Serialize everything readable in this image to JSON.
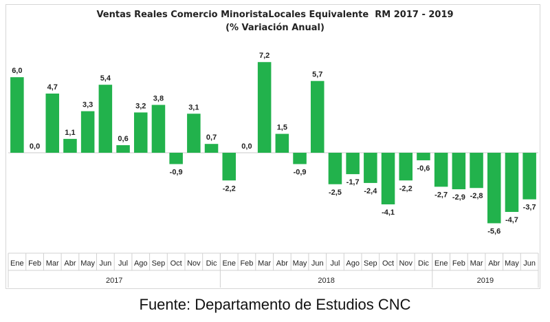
{
  "chart_data": {
    "type": "bar",
    "title": "Ventas Reales Comercio MinoristaLocales Equivalente  RM 2017 - 2019",
    "subtitle": "(% Variación Anual)",
    "xlabel": "",
    "ylabel": "",
    "ylim": [
      -7,
      8
    ],
    "grid": false,
    "legend": "none",
    "bar_color": "#22b24c",
    "categories": [
      "Ene",
      "Feb",
      "Mar",
      "Abr",
      "May",
      "Jun",
      "Jul",
      "Ago",
      "Sep",
      "Oct",
      "Nov",
      "Dic",
      "Ene",
      "Feb",
      "Mar",
      "Abr",
      "May",
      "Jun",
      "Jul",
      "Ago",
      "Sep",
      "Oct",
      "Nov",
      "Dic",
      "Ene",
      "Feb",
      "Mar",
      "Abr",
      "May",
      "Jun"
    ],
    "values": [
      6.0,
      0.0,
      4.7,
      1.1,
      3.3,
      5.4,
      0.6,
      3.2,
      3.8,
      -0.9,
      3.1,
      0.7,
      -2.2,
      0.0,
      7.2,
      1.5,
      -0.9,
      5.7,
      -2.5,
      -1.7,
      -2.4,
      -4.1,
      -2.2,
      -0.6,
      -2.7,
      -2.9,
      -2.8,
      -5.6,
      -4.7,
      -3.7
    ],
    "value_labels": [
      "6,0",
      "0,0",
      "4,7",
      "1,1",
      "3,3",
      "5,4",
      "0,6",
      "3,2",
      "3,8",
      "-0,9",
      "3,1",
      "0,7",
      "-2,2",
      "0,0",
      "7,2",
      "1,5",
      "-0,9",
      "5,7",
      "-2,5",
      "-1,7",
      "-2,4",
      "-4,1",
      "-2,2",
      "-0,6",
      "-2,7",
      "-2,9",
      "-2,8",
      "-5,6",
      "-4,7",
      "-3,7"
    ],
    "groups": [
      {
        "label": "2017",
        "count": 12
      },
      {
        "label": "2018",
        "count": 12
      },
      {
        "label": "2019",
        "count": 6
      }
    ]
  },
  "footer": {
    "source": "Fuente: Departamento de Estudios CNC"
  }
}
